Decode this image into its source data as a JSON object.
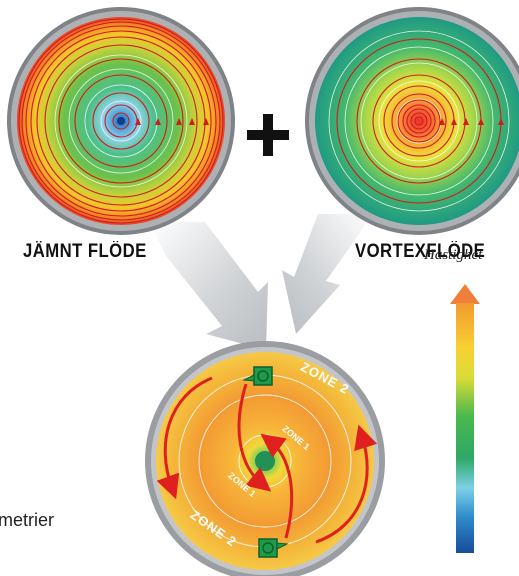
{
  "labels": {
    "uniform_flow": "JÄMNT FLÖDE",
    "vortex_flow": "VORTEXFLÖDE",
    "plus": "+",
    "speed": "Hastighet",
    "cut_text": "metrier"
  },
  "zones": {
    "zone2_top": "ZONE 2",
    "zone1_top": "ZONE 1",
    "zone1_bottom": "ZONE 1",
    "zone2_bottom": "ZONE 2"
  },
  "colors": {
    "arrow_red": "#e0201e",
    "fan_green": "#1f9a4b",
    "rim_gray": "#8c8f93",
    "big_arrow_gray": "#c8cbce"
  }
}
